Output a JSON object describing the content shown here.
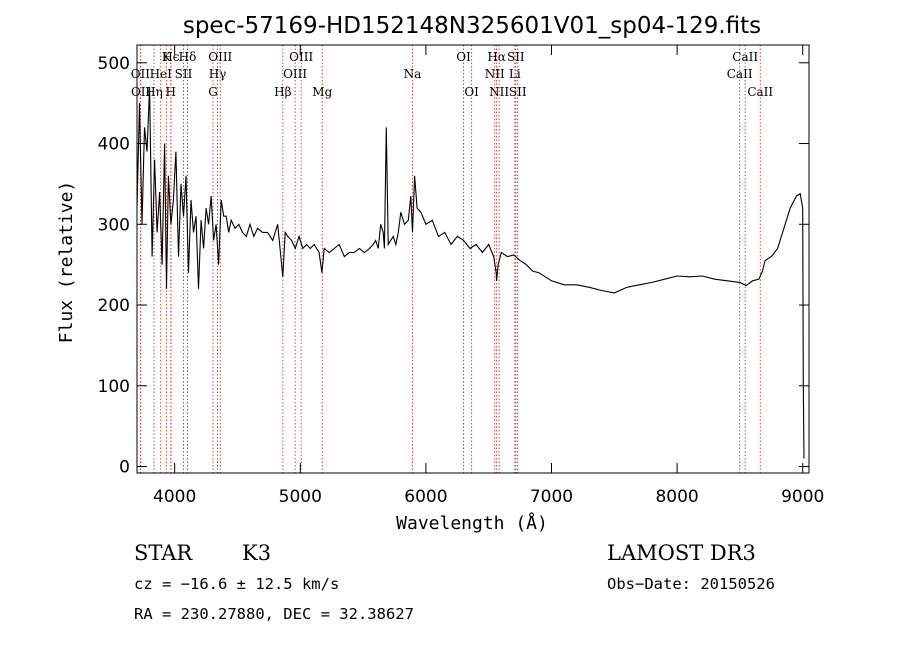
{
  "chart_data": {
    "type": "line",
    "title": "spec-57169-HD152148N325601V01_sp04-129.fits",
    "xlabel": "Wavelength (Å)",
    "ylabel": "Flux (relative)",
    "xlim": [
      3700,
      9050
    ],
    "ylim": [
      -8,
      522
    ],
    "x_ticks": [
      4000,
      5000,
      6000,
      7000,
      8000,
      9000
    ],
    "y_ticks": [
      0,
      100,
      200,
      300,
      400,
      500
    ],
    "grid": false,
    "series": [
      {
        "x": [
          3700,
          3720,
          3740,
          3760,
          3780,
          3800,
          3820,
          3840,
          3860,
          3880,
          3900,
          3920,
          3935,
          3950,
          3970,
          3990,
          4010,
          4030,
          4050,
          4070,
          4090,
          4110,
          4130,
          4150,
          4170,
          4190,
          4210,
          4230,
          4250,
          4270,
          4290,
          4310,
          4330,
          4350,
          4370,
          4390,
          4410,
          4430,
          4450,
          4480,
          4510,
          4540,
          4570,
          4600,
          4630,
          4660,
          4700,
          4740,
          4780,
          4820,
          4861,
          4880,
          4900,
          4930,
          4960,
          4990,
          5020,
          5050,
          5080,
          5110,
          5150,
          5172,
          5190,
          5230,
          5270,
          5310,
          5350,
          5390,
          5430,
          5470,
          5510,
          5550,
          5580,
          5600,
          5620,
          5640,
          5660,
          5670,
          5685,
          5700,
          5720,
          5740,
          5760,
          5780,
          5800,
          5830,
          5860,
          5880,
          5893,
          5910,
          5930,
          5960,
          6000,
          6050,
          6100,
          6150,
          6200,
          6250,
          6300,
          6350,
          6400,
          6450,
          6500,
          6540,
          6560,
          6563,
          6575,
          6600,
          6650,
          6700,
          6750,
          6800,
          6850,
          6900,
          6950,
          7000,
          7100,
          7200,
          7300,
          7400,
          7500,
          7600,
          7700,
          7800,
          7900,
          8000,
          8100,
          8200,
          8300,
          8400,
          8500,
          8550,
          8600,
          8650,
          8680,
          8700,
          8750,
          8800,
          8850,
          8900,
          8950,
          8980,
          9000,
          9005,
          9010
        ],
        "y": [
          320,
          450,
          300,
          420,
          390,
          470,
          260,
          380,
          290,
          340,
          250,
          400,
          220,
          360,
          300,
          330,
          390,
          260,
          350,
          310,
          360,
          240,
          330,
          290,
          310,
          220,
          305,
          270,
          320,
          300,
          335,
          280,
          300,
          250,
          330,
          310,
          310,
          290,
          305,
          295,
          300,
          290,
          285,
          300,
          285,
          295,
          290,
          290,
          280,
          300,
          235,
          290,
          285,
          280,
          270,
          285,
          270,
          275,
          270,
          275,
          265,
          240,
          270,
          265,
          270,
          275,
          260,
          265,
          265,
          270,
          265,
          270,
          275,
          280,
          270,
          300,
          290,
          270,
          420,
          275,
          280,
          285,
          275,
          290,
          315,
          300,
          305,
          335,
          290,
          360,
          320,
          315,
          300,
          305,
          285,
          290,
          275,
          285,
          280,
          270,
          275,
          265,
          275,
          260,
          240,
          230,
          250,
          265,
          260,
          262,
          255,
          250,
          242,
          240,
          235,
          230,
          225,
          225,
          222,
          218,
          215,
          222,
          225,
          228,
          232,
          236,
          235,
          236,
          232,
          230,
          228,
          224,
          230,
          232,
          242,
          255,
          260,
          270,
          295,
          320,
          335,
          338,
          320,
          100,
          10
        ],
        "color": "#000000"
      }
    ],
    "annotations": [
      {
        "label": "Hϵ",
        "x": 3970,
        "row": 1
      },
      {
        "label": "OII",
        "x": 3727,
        "row": 2
      },
      {
        "label": "OII",
        "x": 3729,
        "row": 3
      },
      {
        "label": "K",
        "x": 3934,
        "row": 1
      },
      {
        "label": "HeI",
        "x": 3889,
        "row": 2
      },
      {
        "label": "Hη",
        "x": 3835,
        "row": 3
      },
      {
        "label": "H",
        "x": 3969,
        "row": 3
      },
      {
        "label": "Hδ",
        "x": 4102,
        "row": 1
      },
      {
        "label": "SII",
        "x": 4070,
        "row": 2
      },
      {
        "label": "OIII",
        "x": 4363,
        "row": 1
      },
      {
        "label": "Hγ",
        "x": 4341,
        "row": 2
      },
      {
        "label": "G",
        "x": 4305,
        "row": 3
      },
      {
        "label": "OIII",
        "x": 5007,
        "row": 1
      },
      {
        "label": "OIII",
        "x": 4959,
        "row": 2
      },
      {
        "label": "Hβ",
        "x": 4861,
        "row": 3
      },
      {
        "label": "Mg",
        "x": 5175,
        "row": 3
      },
      {
        "label": "Na",
        "x": 5893,
        "row": 2
      },
      {
        "label": "OI",
        "x": 6300,
        "row": 1
      },
      {
        "label": "OI",
        "x": 6364,
        "row": 3
      },
      {
        "label": "Hα",
        "x": 6563,
        "row": 1
      },
      {
        "label": "SII",
        "x": 6716,
        "row": 1
      },
      {
        "label": "NII",
        "x": 6548,
        "row": 2
      },
      {
        "label": "Li",
        "x": 6708,
        "row": 2
      },
      {
        "label": "NII",
        "x": 6583,
        "row": 3
      },
      {
        "label": "SII",
        "x": 6731,
        "row": 3
      },
      {
        "label": "CaII",
        "x": 8542,
        "row": 1
      },
      {
        "label": "CaII",
        "x": 8498,
        "row": 2
      },
      {
        "label": "CaII",
        "x": 8662,
        "row": 3
      }
    ]
  },
  "info": {
    "object_class": "STAR",
    "subclass": "K3",
    "survey": "LAMOST DR3",
    "cz": "cz = −16.6 ± 12.5 km/s",
    "obs_date": "Obs−Date: 20150526",
    "coords": "RA = 230.27880, DEC =  32.38627"
  }
}
